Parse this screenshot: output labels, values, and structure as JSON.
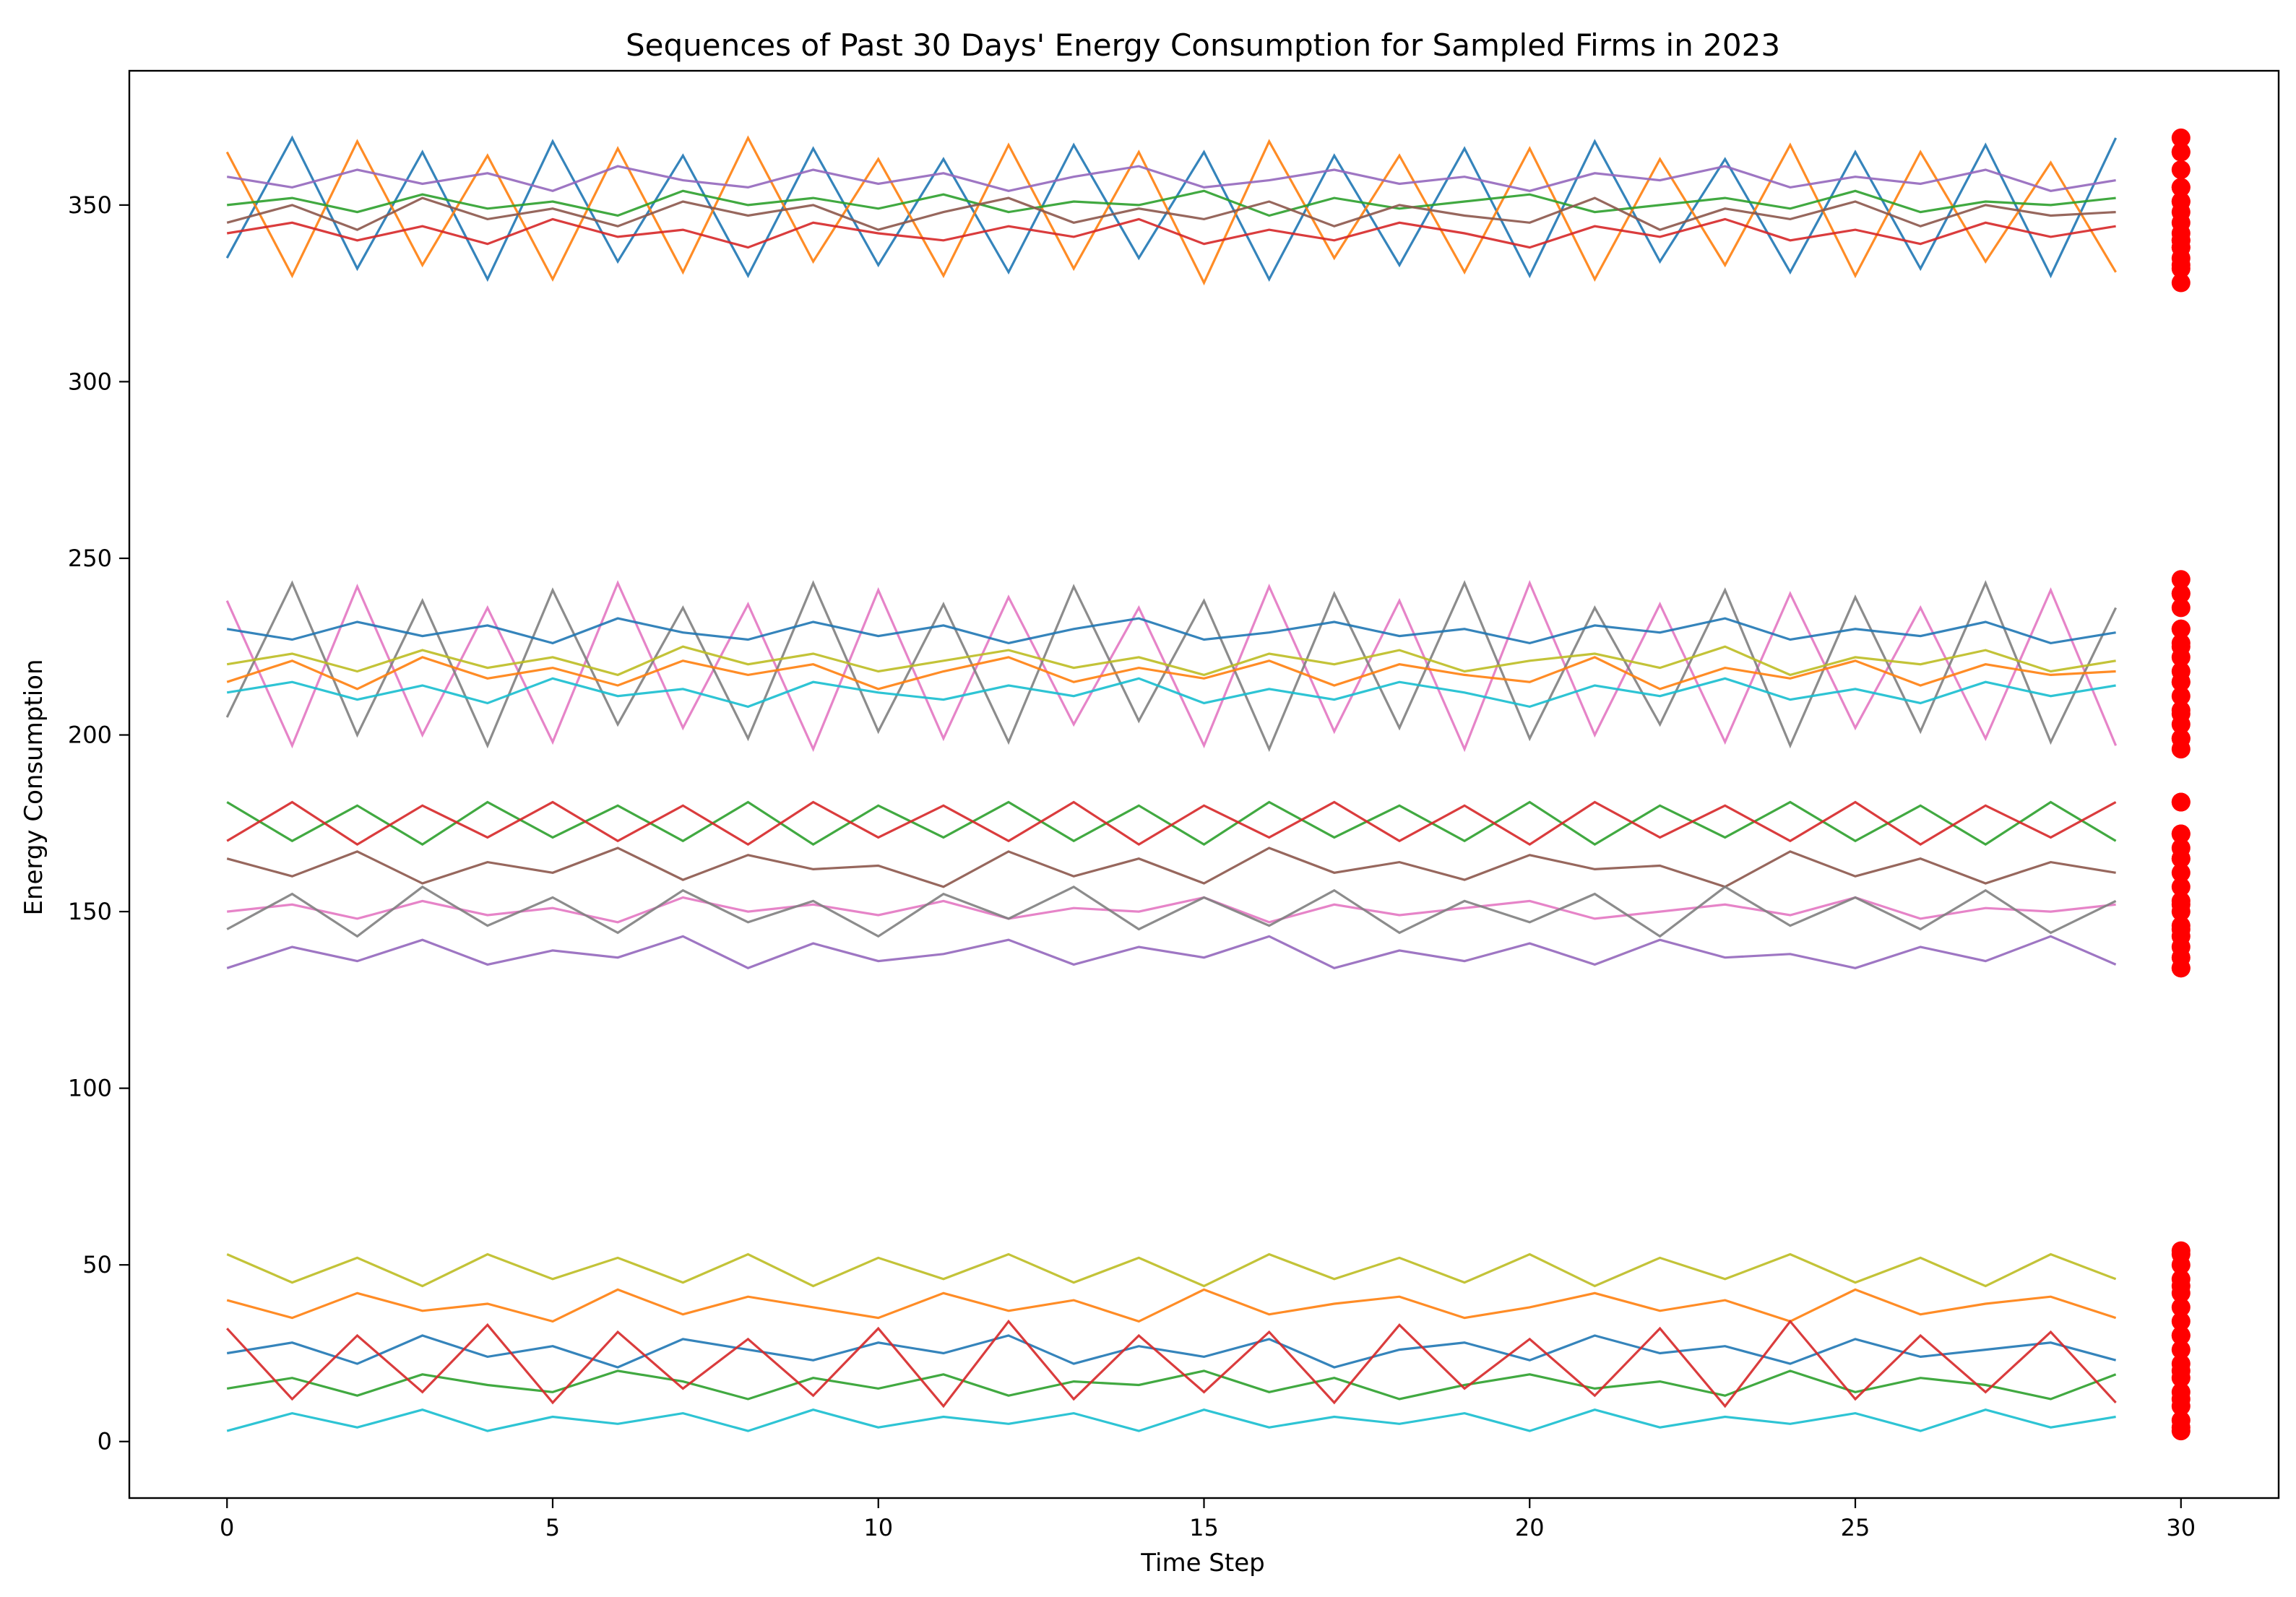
{
  "chart_data": {
    "type": "line",
    "title": "Sequences of Past 30 Days' Energy Consumption for Sampled Firms in 2023",
    "xlabel": "Time Step",
    "ylabel": "Energy Consumption",
    "xlim": [
      -1.5,
      31.5
    ],
    "ylim": [
      -16,
      388
    ],
    "xticks": [
      0,
      5,
      10,
      15,
      20,
      25,
      30
    ],
    "xtick_labels": [
      "0",
      "5",
      "10",
      "15",
      "20",
      "25",
      "30"
    ],
    "yticks": [
      0,
      50,
      100,
      150,
      200,
      250,
      300,
      350
    ],
    "ytick_labels": [
      "0",
      "50",
      "100",
      "150",
      "200",
      "250",
      "300",
      "350"
    ],
    "grid": false,
    "legend": "none",
    "line_palette": [
      "#1f77b4",
      "#ff7f0e",
      "#2ca02c",
      "#d62728",
      "#9467bd",
      "#8c564b",
      "#e377c2",
      "#7f7f7f",
      "#bcbd22",
      "#17becf"
    ],
    "scatter_color": "#ff0000",
    "series_groups": [
      {
        "x": [
          0,
          1,
          2,
          3,
          4,
          5,
          6,
          7,
          8,
          9,
          10,
          11,
          12,
          13,
          14,
          15,
          16,
          17,
          18,
          19,
          20,
          21,
          22,
          23,
          24,
          25,
          26,
          27,
          28,
          29
        ],
        "series": [
          {
            "values": [
              335,
              369,
              332,
              365,
              329,
              368,
              334,
              364,
              330,
              366,
              333,
              363,
              331,
              367,
              335,
              365,
              329,
              364,
              333,
              366,
              330,
              368,
              334,
              363,
              331,
              365,
              332,
              367,
              330,
              369
            ],
            "next": 351
          },
          {
            "values": [
              365,
              330,
              368,
              333,
              364,
              329,
              366,
              331,
              369,
              334,
              363,
              330,
              367,
              332,
              365,
              328,
              368,
              335,
              364,
              331,
              366,
              329,
              363,
              333,
              367,
              330,
              365,
              334,
              362,
              331
            ],
            "next": 340
          },
          {
            "values": [
              350,
              352,
              348,
              353,
              349,
              351,
              347,
              354,
              350,
              352,
              349,
              353,
              348,
              351,
              350,
              354,
              347,
              352,
              349,
              351,
              353,
              348,
              350,
              352,
              349,
              354,
              348,
              351,
              350,
              352
            ],
            "next": 355
          },
          {
            "values": [
              342,
              345,
              340,
              344,
              339,
              346,
              341,
              343,
              338,
              345,
              342,
              340,
              344,
              341,
              346,
              339,
              343,
              340,
              345,
              342,
              338,
              344,
              341,
              346,
              340,
              343,
              339,
              345,
              341,
              344
            ],
            "next": 333
          },
          {
            "values": [
              358,
              355,
              360,
              356,
              359,
              354,
              361,
              357,
              355,
              360,
              356,
              359,
              354,
              358,
              361,
              355,
              357,
              360,
              356,
              358,
              354,
              359,
              357,
              361,
              355,
              358,
              356,
              360,
              354,
              357
            ],
            "next": 365
          },
          {
            "values": [
              345,
              350,
              343,
              352,
              346,
              349,
              344,
              351,
              347,
              350,
              343,
              348,
              352,
              345,
              349,
              346,
              351,
              344,
              350,
              347,
              345,
              352,
              343,
              349,
              346,
              351,
              344,
              350,
              347,
              348
            ],
            "next": 338
          }
        ]
      },
      {
        "x": [
          0,
          1,
          2,
          3,
          4,
          5,
          6,
          7,
          8,
          9,
          10,
          11,
          12,
          13,
          14,
          15,
          16,
          17,
          18,
          19,
          20,
          21,
          22,
          23,
          24,
          25,
          26,
          27,
          28,
          29
        ],
        "series": [
          {
            "values": [
              238,
              197,
              242,
              200,
              236,
              198,
              243,
              202,
              237,
              196,
              241,
              199,
              239,
              203,
              236,
              197,
              242,
              201,
              238,
              196,
              243,
              200,
              237,
              198,
              240,
              202,
              236,
              199,
              241,
              197
            ],
            "next": 230
          },
          {
            "values": [
              205,
              243,
              200,
              238,
              197,
              241,
              203,
              236,
              199,
              243,
              201,
              237,
              198,
              242,
              204,
              238,
              196,
              240,
              202,
              243,
              199,
              236,
              203,
              241,
              197,
              239,
              201,
              243,
              198,
              236
            ],
            "next": 206
          },
          {
            "values": [
              220,
              223,
              218,
              224,
              219,
              222,
              217,
              225,
              220,
              223,
              218,
              221,
              224,
              219,
              222,
              217,
              223,
              220,
              224,
              218,
              221,
              223,
              219,
              225,
              217,
              222,
              220,
              224,
              218,
              221
            ],
            "next": 215
          },
          {
            "values": [
              212,
              215,
              210,
              214,
              209,
              216,
              211,
              213,
              208,
              215,
              212,
              210,
              214,
              211,
              216,
              209,
              213,
              210,
              215,
              212,
              208,
              214,
              211,
              216,
              210,
              213,
              209,
              215,
              211,
              214
            ],
            "next": 225
          },
          {
            "values": [
              230,
              227,
              232,
              228,
              231,
              226,
              233,
              229,
              227,
              232,
              228,
              231,
              226,
              230,
              233,
              227,
              229,
              232,
              228,
              230,
              226,
              231,
              229,
              233,
              227,
              230,
              228,
              232,
              226,
              229
            ],
            "next": 240
          },
          {
            "values": [
              215,
              221,
              213,
              222,
              216,
              219,
              214,
              221,
              217,
              220,
              213,
              218,
              222,
              215,
              219,
              216,
              221,
              214,
              220,
              217,
              215,
              222,
              213,
              219,
              216,
              221,
              214,
              220,
              217,
              218
            ],
            "next": 199
          }
        ]
      },
      {
        "x": [
          0,
          1,
          2,
          3,
          4,
          5,
          6,
          7,
          8,
          9,
          10,
          11,
          12,
          13,
          14,
          15,
          16,
          17,
          18,
          19,
          20,
          21,
          22,
          23,
          24,
          25,
          26,
          27,
          28,
          29
        ],
        "series": [
          {
            "values": [
              181,
              170,
              180,
              169,
              181,
              171,
              180,
              170,
              181,
              169,
              180,
              171,
              181,
              170,
              180,
              169,
              181,
              171,
              180,
              170,
              181,
              169,
              180,
              171,
              181,
              170,
              180,
              169,
              181,
              170
            ],
            "next": 181
          },
          {
            "values": [
              170,
              181,
              169,
              180,
              171,
              181,
              170,
              180,
              169,
              181,
              171,
              180,
              170,
              181,
              169,
              180,
              171,
              181,
              170,
              180,
              169,
              181,
              171,
              180,
              170,
              181,
              169,
              180,
              171,
              181
            ],
            "next": 172
          },
          {
            "values": [
              134,
              140,
              136,
              142,
              135,
              139,
              137,
              143,
              134,
              141,
              136,
              138,
              142,
              135,
              140,
              137,
              143,
              134,
              139,
              136,
              141,
              135,
              142,
              137,
              138,
              134,
              140,
              136,
              143,
              135
            ],
            "next": 134
          },
          {
            "values": [
              165,
              160,
              167,
              158,
              164,
              161,
              168,
              159,
              166,
              162,
              163,
              157,
              167,
              160,
              165,
              158,
              168,
              161,
              164,
              159,
              166,
              162,
              163,
              157,
              167,
              160,
              165,
              158,
              164,
              161
            ],
            "next": 165
          },
          {
            "values": [
              150,
              152,
              148,
              153,
              149,
              151,
              147,
              154,
              150,
              152,
              149,
              153,
              148,
              151,
              150,
              154,
              147,
              152,
              149,
              151,
              153,
              148,
              150,
              152,
              149,
              154,
              148,
              151,
              150,
              152
            ],
            "next": 152
          },
          {
            "values": [
              145,
              155,
              143,
              157,
              146,
              154,
              144,
              156,
              147,
              153,
              143,
              155,
              148,
              157,
              145,
              154,
              146,
              156,
              144,
              153,
              147,
              155,
              143,
              157,
              146,
              154,
              145,
              156,
              144,
              153
            ],
            "next": 145
          }
        ]
      },
      {
        "x": [
          0,
          1,
          2,
          3,
          4,
          5,
          6,
          7,
          8,
          9,
          10,
          11,
          12,
          13,
          14,
          15,
          16,
          17,
          18,
          19,
          20,
          21,
          22,
          23,
          24,
          25,
          26,
          27,
          28,
          29
        ],
        "series": [
          {
            "values": [
              53,
              45,
              52,
              44,
              53,
              46,
              52,
              45,
              53,
              44,
              52,
              46,
              53,
              45,
              52,
              44,
              53,
              46,
              52,
              45,
              53,
              44,
              52,
              46,
              53,
              45,
              52,
              44,
              53,
              46
            ],
            "next": 53
          },
          {
            "values": [
              3,
              8,
              4,
              9,
              3,
              7,
              5,
              8,
              3,
              9,
              4,
              7,
              5,
              8,
              3,
              9,
              4,
              7,
              5,
              8,
              3,
              9,
              4,
              7,
              5,
              8,
              3,
              9,
              4,
              7
            ],
            "next": 4
          },
          {
            "values": [
              25,
              28,
              22,
              30,
              24,
              27,
              21,
              29,
              26,
              23,
              28,
              25,
              30,
              22,
              27,
              24,
              29,
              21,
              26,
              28,
              23,
              30,
              25,
              27,
              22,
              29,
              24,
              26,
              28,
              23
            ],
            "next": 30
          },
          {
            "values": [
              40,
              35,
              42,
              37,
              39,
              34,
              43,
              36,
              41,
              38,
              35,
              42,
              37,
              40,
              34,
              43,
              36,
              39,
              41,
              35,
              38,
              42,
              37,
              40,
              34,
              43,
              36,
              39,
              41,
              35
            ],
            "next": 44
          },
          {
            "values": [
              15,
              18,
              13,
              19,
              16,
              14,
              20,
              17,
              12,
              18,
              15,
              19,
              13,
              17,
              16,
              20,
              14,
              18,
              12,
              16,
              19,
              15,
              17,
              13,
              20,
              14,
              18,
              16,
              12,
              19
            ],
            "next": 12
          },
          {
            "values": [
              32,
              12,
              30,
              14,
              33,
              11,
              31,
              15,
              29,
              13,
              32,
              10,
              34,
              12,
              30,
              14,
              31,
              11,
              33,
              15,
              29,
              13,
              32,
              10,
              34,
              12,
              30,
              14,
              31,
              11
            ],
            "next": 20
          }
        ]
      }
    ],
    "scatter": {
      "x": 30,
      "values": [
        369,
        365,
        360,
        355,
        351,
        348,
        345,
        342,
        340,
        338,
        335,
        332,
        328,
        244,
        240,
        236,
        230,
        226,
        222,
        218,
        215,
        211,
        207,
        203,
        199,
        196,
        181,
        172,
        168,
        165,
        161,
        157,
        153,
        150,
        146,
        143,
        140,
        137,
        134,
        54,
        50,
        46,
        42,
        38,
        34,
        30,
        26,
        22,
        18,
        14,
        10,
        6,
        3
      ]
    }
  }
}
